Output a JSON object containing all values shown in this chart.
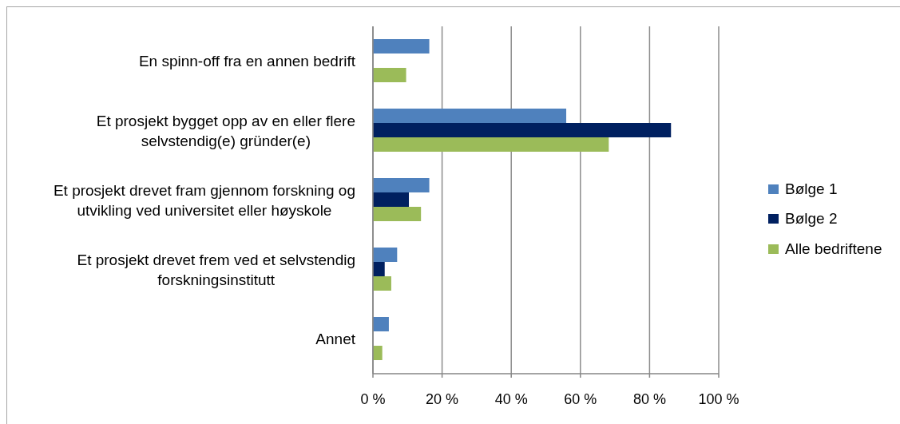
{
  "chart_data": {
    "type": "bar",
    "orientation": "horizontal",
    "categories": [
      "En spinn-off fra en annen bedrift",
      "Et prosjekt bygget opp av en eller flere selvstendig(e) gründer(e)",
      "Et prosjekt drevet fram gjennom forskning og utvikling ved universitet eller høyskole",
      "Et prosjekt drevet frem ved et selvstendig forskningsinstitutt",
      "Annet"
    ],
    "series": [
      {
        "name": "Bølge 1",
        "color": "#4f81bd",
        "values": [
          16.3,
          55.9,
          16.3,
          7.0,
          4.6
        ]
      },
      {
        "name": "Bølge 2",
        "color": "#002060",
        "values": [
          null,
          86.2,
          10.4,
          3.4,
          null
        ]
      },
      {
        "name": "Alle bedriftene",
        "color": "#9bbb59",
        "values": [
          9.6,
          68.2,
          13.9,
          5.3,
          2.7
        ]
      }
    ],
    "xlim": [
      0,
      100
    ],
    "xticks": [
      {
        "value": 0,
        "label": "0 %"
      },
      {
        "value": 20,
        "label": "20 %"
      },
      {
        "value": 40,
        "label": "40 %"
      },
      {
        "value": 60,
        "label": "60 %"
      },
      {
        "value": 80,
        "label": "80 %"
      },
      {
        "value": 100,
        "label": "100 %"
      }
    ],
    "grid": "x",
    "legend": "right"
  }
}
